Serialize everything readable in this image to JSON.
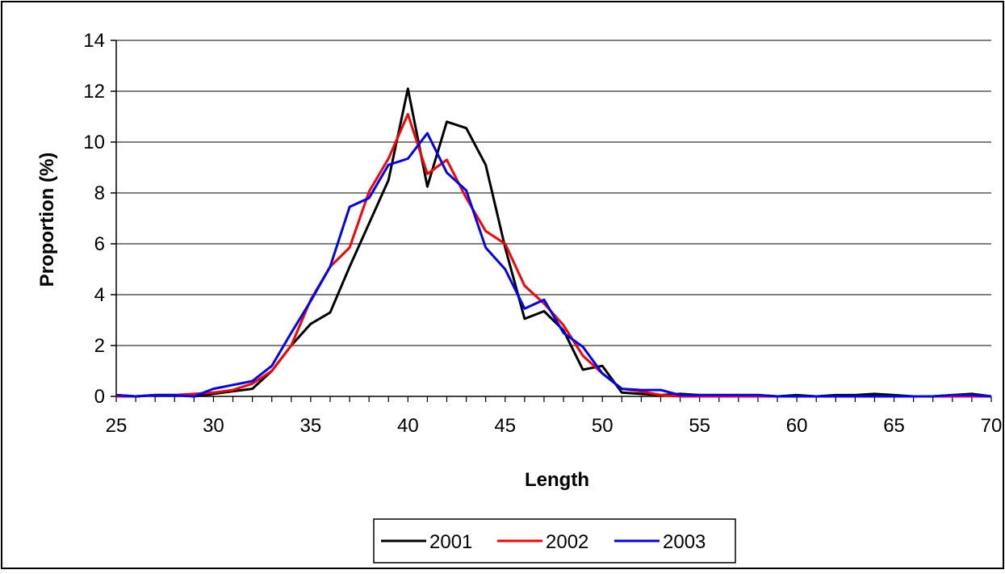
{
  "chart_data": {
    "type": "line",
    "title": "",
    "xlabel": "Length",
    "ylabel": "Proportion (%)",
    "xlim": [
      25,
      70
    ],
    "ylim": [
      0,
      14
    ],
    "xticks": [
      25,
      30,
      35,
      40,
      45,
      50,
      55,
      60,
      65,
      70
    ],
    "yticks": [
      0,
      2,
      4,
      6,
      8,
      10,
      12,
      14
    ],
    "grid": "horizontal",
    "legend_position": "bottom",
    "x": [
      25,
      26,
      27,
      28,
      29,
      30,
      31,
      32,
      33,
      34,
      35,
      36,
      37,
      38,
      39,
      40,
      41,
      42,
      43,
      44,
      45,
      46,
      47,
      48,
      49,
      50,
      51,
      52,
      53,
      54,
      55,
      56,
      57,
      58,
      59,
      60,
      61,
      62,
      63,
      64,
      65,
      66,
      67,
      68,
      69,
      70
    ],
    "series": [
      {
        "name": "2001",
        "color": "#000000",
        "values": [
          0.05,
          0,
          0.05,
          0.05,
          0,
          0.1,
          0.2,
          0.3,
          1.0,
          2.0,
          2.85,
          3.3,
          5.1,
          6.8,
          8.5,
          12.1,
          8.25,
          10.8,
          10.55,
          9.1,
          5.85,
          3.05,
          3.35,
          2.6,
          1.05,
          1.2,
          0.15,
          0.1,
          0.05,
          0.1,
          0.05,
          0.05,
          0.05,
          0.05,
          0,
          0.05,
          0,
          0.05,
          0.05,
          0.1,
          0.05,
          0,
          0,
          0.05,
          0.1,
          0
        ]
      },
      {
        "name": "2002",
        "color": "#ff0000",
        "values": [
          0,
          0,
          0.05,
          0.05,
          0.1,
          0.15,
          0.25,
          0.5,
          1.0,
          2.0,
          3.8,
          5.1,
          5.85,
          8.05,
          9.35,
          11.1,
          8.75,
          9.3,
          7.8,
          6.5,
          6.0,
          4.35,
          3.65,
          2.8,
          1.6,
          0.9,
          0.3,
          0.2,
          0.05,
          0,
          0,
          0,
          0,
          0,
          0,
          0,
          0,
          0,
          0,
          0,
          0,
          0,
          0,
          0,
          0,
          0
        ]
      },
      {
        "name": "2003",
        "color": "#0000ff",
        "values": [
          0.05,
          0,
          0.05,
          0.05,
          0,
          0.3,
          0.45,
          0.6,
          1.2,
          2.5,
          3.75,
          5.1,
          7.45,
          7.8,
          9.1,
          9.35,
          10.35,
          8.8,
          8.1,
          5.85,
          5.0,
          3.45,
          3.8,
          2.5,
          1.95,
          0.9,
          0.3,
          0.25,
          0.25,
          0.05,
          0.05,
          0.05,
          0.05,
          0.05,
          0,
          0,
          0,
          0,
          0,
          0,
          0,
          0,
          0,
          0.05,
          0.05,
          0
        ]
      }
    ]
  }
}
